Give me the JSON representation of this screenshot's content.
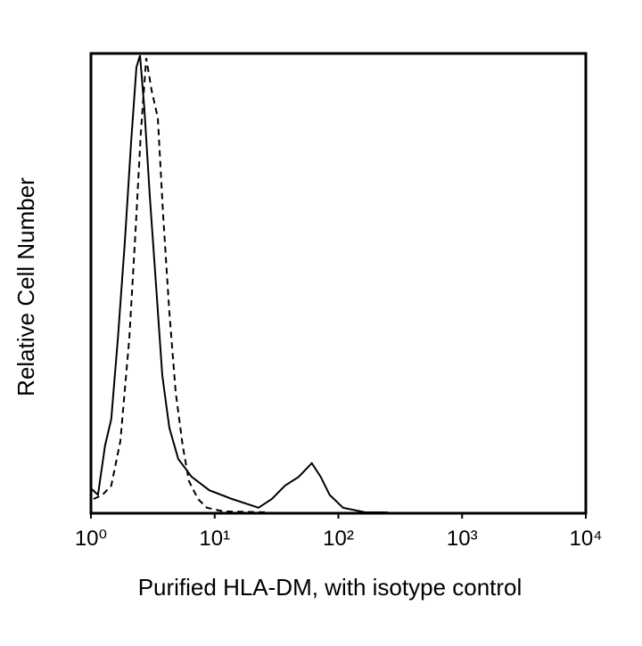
{
  "chart_data": {
    "type": "line",
    "xlabel": "Purified HLA-DM, with isotype control",
    "ylabel": "Relative Cell Number",
    "xscale": "log",
    "xlim": [
      1,
      10000
    ],
    "xticks": [
      {
        "value": 1,
        "label": "10⁰"
      },
      {
        "value": 10,
        "label": "10¹"
      },
      {
        "value": 100,
        "label": "10²"
      },
      {
        "value": 1000,
        "label": "10³"
      },
      {
        "value": 10000,
        "label": "10⁴"
      }
    ],
    "ylim": [
      0,
      100
    ],
    "series": [
      {
        "color": "#000000",
        "line_style": "solid",
        "x": [
          1,
          1.14,
          1.3,
          1.46,
          1.65,
          1.88,
          2.11,
          2.33,
          2.49,
          2.7,
          2.99,
          3.36,
          3.77,
          4.3,
          5.08,
          6.52,
          9.05,
          13.8,
          22.6,
          29,
          37,
          47.7,
          61,
          72,
          85,
          109,
          165,
          250
        ],
        "values": [
          5.4,
          4,
          14.7,
          20.5,
          38,
          59,
          80.6,
          97,
          99.6,
          88,
          69,
          49.6,
          30,
          18.6,
          11.8,
          7.9,
          5,
          3.1,
          1.2,
          3.1,
          6,
          7.9,
          10.9,
          7.9,
          4,
          1.2,
          0.2,
          0.2
        ]
      },
      {
        "color": "#000000",
        "line_style": "dashed",
        "x": [
          1.05,
          1.24,
          1.46,
          1.73,
          2.04,
          2.29,
          2.53,
          2.8,
          3.09,
          3.47,
          3.83,
          4.3,
          4.84,
          5.52,
          6.2,
          7.33,
          8.66,
          11.7,
          26.7
        ],
        "values": [
          3.1,
          4,
          6,
          15.7,
          38,
          61,
          82.6,
          99,
          92,
          86,
          65,
          43.8,
          26.4,
          14.7,
          7,
          3.1,
          1.2,
          0.4,
          0.2
        ]
      }
    ]
  }
}
